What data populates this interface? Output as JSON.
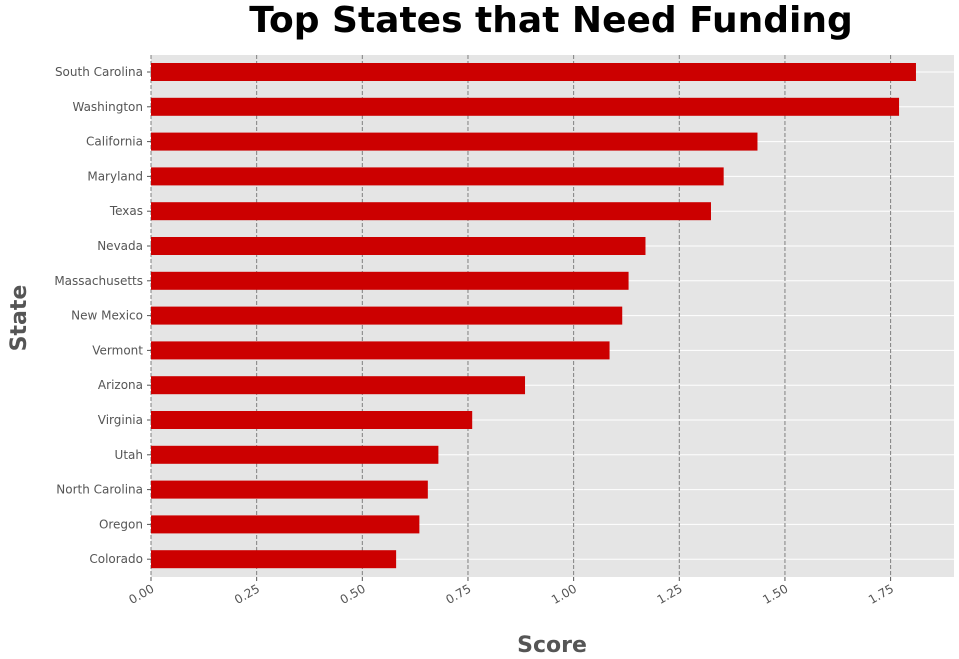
{
  "chart_data": {
    "type": "bar",
    "orientation": "horizontal",
    "title": "Top States that Need Funding",
    "xlabel": "Score",
    "ylabel": "State",
    "categories": [
      "South Carolina",
      "Washington",
      "California",
      "Maryland",
      "Texas",
      "Nevada",
      "Massachusetts",
      "New Mexico",
      "Vermont",
      "Arizona",
      "Virginia",
      "Utah",
      "North Carolina",
      "Oregon",
      "Colorado"
    ],
    "values": [
      1.81,
      1.77,
      1.435,
      1.355,
      1.325,
      1.17,
      1.13,
      1.115,
      1.085,
      0.885,
      0.76,
      0.68,
      0.655,
      0.635,
      0.58
    ],
    "xlim": [
      0,
      1.9
    ],
    "xticks": [
      "0.00",
      "0.25",
      "0.50",
      "0.75",
      "1.00",
      "1.25",
      "1.50",
      "1.75"
    ],
    "grid": true,
    "bar_color": "#cc0000",
    "background_color": "#e5e5e5",
    "legend": "none"
  }
}
